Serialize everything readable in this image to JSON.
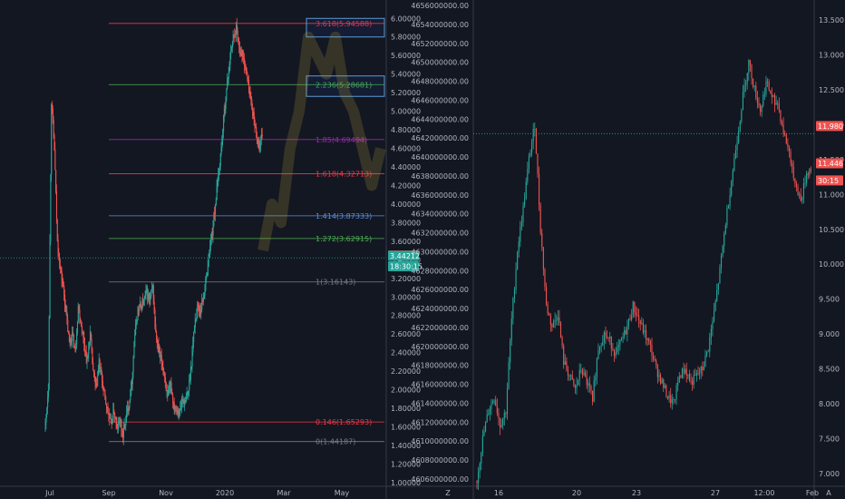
{
  "chart_data": [
    {
      "type": "candlestick",
      "x_ticks": [
        "Jul",
        "Sep",
        "Nov",
        "2020",
        "Mar",
        "May"
      ],
      "y_ticks": [
        "6.00000",
        "5.80000",
        "5.60000",
        "5.40000",
        "5.20000",
        "5.00000",
        "4.80000",
        "4.60000",
        "4.40000",
        "4.20000",
        "4.00000",
        "3.80000",
        "3.60000",
        "3.40000",
        "3.20000",
        "3.00000",
        "2.80000",
        "2.60000",
        "2.40000",
        "2.20000",
        "2.00000",
        "1.80000",
        "1.60000",
        "1.40000",
        "1.20000",
        "1.00000"
      ],
      "ylim": [
        0.96,
        6.12
      ],
      "price_badges": [
        {
          "text": "3.44592",
          "value": 3.44592,
          "color": "#ef5350"
        },
        {
          "text": "3.44212",
          "value": 3.44212,
          "color": "#26a69a"
        },
        {
          "text": "18:30:15",
          "value": 3.33,
          "color": "#26a69a"
        }
      ],
      "horizontal_line": 3.42,
      "fib_levels": [
        {
          "label": "3.618(5.94588)",
          "value": 5.94588,
          "color": "#f23645"
        },
        {
          "label": "2.236(5.28681)",
          "value": 5.28681,
          "color": "#4caf50"
        },
        {
          "label": "1.85(4.69494)",
          "value": 4.69494,
          "color": "#9c27b0"
        },
        {
          "label": "1.618(4.32713)",
          "value": 4.32713,
          "color": "#f23645"
        },
        {
          "label": "1.414(3.87333)",
          "value": 3.87333,
          "color": "#5b8dd9"
        },
        {
          "label": "1.272(3.62915)",
          "value": 3.62915,
          "color": "#4caf50"
        },
        {
          "label": "1(3.16143)",
          "value": 3.16143,
          "color": "#787b86"
        },
        {
          "label": "0.146(1.65293)",
          "value": 1.65293,
          "color": "#f23645"
        },
        {
          "label": "0(1.44187)",
          "value": 1.44187,
          "color": "#787b86"
        }
      ],
      "series": [
        {
          "values": [
            1.62,
            2.05,
            5.12,
            4.6,
            3.6,
            3.3,
            3.1,
            2.8,
            2.5,
            2.6,
            2.4,
            2.9,
            2.7,
            2.5,
            2.3,
            2.6,
            2.2,
            2.0,
            2.3,
            2.1,
            1.9,
            1.75,
            1.62,
            1.78,
            1.56,
            1.68,
            1.5,
            1.7,
            1.85,
            2.1,
            2.6,
            2.85,
            2.9,
            2.95,
            3.05,
            2.95,
            3.1,
            2.6,
            2.4,
            2.3,
            2.15,
            1.9,
            2.05,
            1.85,
            1.8,
            1.75,
            1.9,
            1.85,
            2.0,
            2.3,
            2.7,
            2.9,
            2.85,
            3.0,
            3.2,
            3.5,
            3.7,
            4.0,
            4.3,
            4.6,
            5.0,
            5.3,
            5.6,
            5.8,
            5.9,
            5.7,
            5.6,
            5.5,
            5.3,
            5.1,
            4.9,
            4.7,
            4.6,
            4.8
          ]
        }
      ]
    },
    {
      "type": "candlestick",
      "x_ticks": [
        "16",
        "20",
        "23",
        "27",
        "12:00",
        "Feb"
      ],
      "y_ticks": [
        "13.500",
        "13.000",
        "12.500",
        "12.000",
        "11.500",
        "11.000",
        "10.500",
        "10.000",
        "9.500",
        "9.000",
        "8.500",
        "8.000",
        "7.500",
        "7.000"
      ],
      "ylim": [
        6.82,
        13.68
      ],
      "price_badges": [
        {
          "text": "11.980",
          "value": 11.98,
          "color": "#ef5350"
        },
        {
          "text": "11.446",
          "value": 11.446,
          "color": "#ef5350"
        },
        {
          "text": "30:15",
          "value": 11.2,
          "color": "#ef5350"
        }
      ],
      "horizontal_line": 11.87,
      "series": [
        {
          "values": [
            6.9,
            7.5,
            7.9,
            8.1,
            7.7,
            7.9,
            9.2,
            10.2,
            10.8,
            11.5,
            12.0,
            10.5,
            9.4,
            9.1,
            9.3,
            8.6,
            8.4,
            8.2,
            8.5,
            8.3,
            8.1,
            8.8,
            9.0,
            8.9,
            8.7,
            8.9,
            9.1,
            9.4,
            9.2,
            9.0,
            8.8,
            8.5,
            8.3,
            8.1,
            8.0,
            8.4,
            8.5,
            8.3,
            8.4,
            8.5,
            8.8,
            9.3,
            9.9,
            10.6,
            11.2,
            11.8,
            12.4,
            12.9,
            12.5,
            12.2,
            12.6,
            12.4,
            12.3,
            11.9,
            11.6,
            11.2,
            10.9,
            11.3,
            11.4
          ]
        }
      ]
    }
  ],
  "axis_separator": {
    "icon": "z-order-icon",
    "text": "Z"
  },
  "right_footer": {
    "icon": "auto-scale-icon",
    "text": "A"
  },
  "colors": {
    "bg": "#131722",
    "up": "#26a69a",
    "down": "#ef5350",
    "grid": "#2a2e39",
    "text": "#b2b5be"
  },
  "left_price_axis_overlay": {
    "label_series": [
      "4656000000.00",
      "4654000000.00",
      "4652000000.00",
      "4650000000.00",
      "4648000000.00",
      "4646000000.00",
      "4644000000.00",
      "4642000000.00",
      "4640000000.00",
      "4638000000.00",
      "4636000000.00",
      "4634000000.00",
      "4632000000.00",
      "4630000000.00",
      "4628000000.00",
      "4626000000.00",
      "4624000000.00",
      "4622000000.00",
      "4620000000.00",
      "4618000000.00",
      "4616000000.00",
      "4614000000.00",
      "4612000000.00",
      "4610000000.00",
      "4608000000.00",
      "4606000000.00"
    ]
  }
}
